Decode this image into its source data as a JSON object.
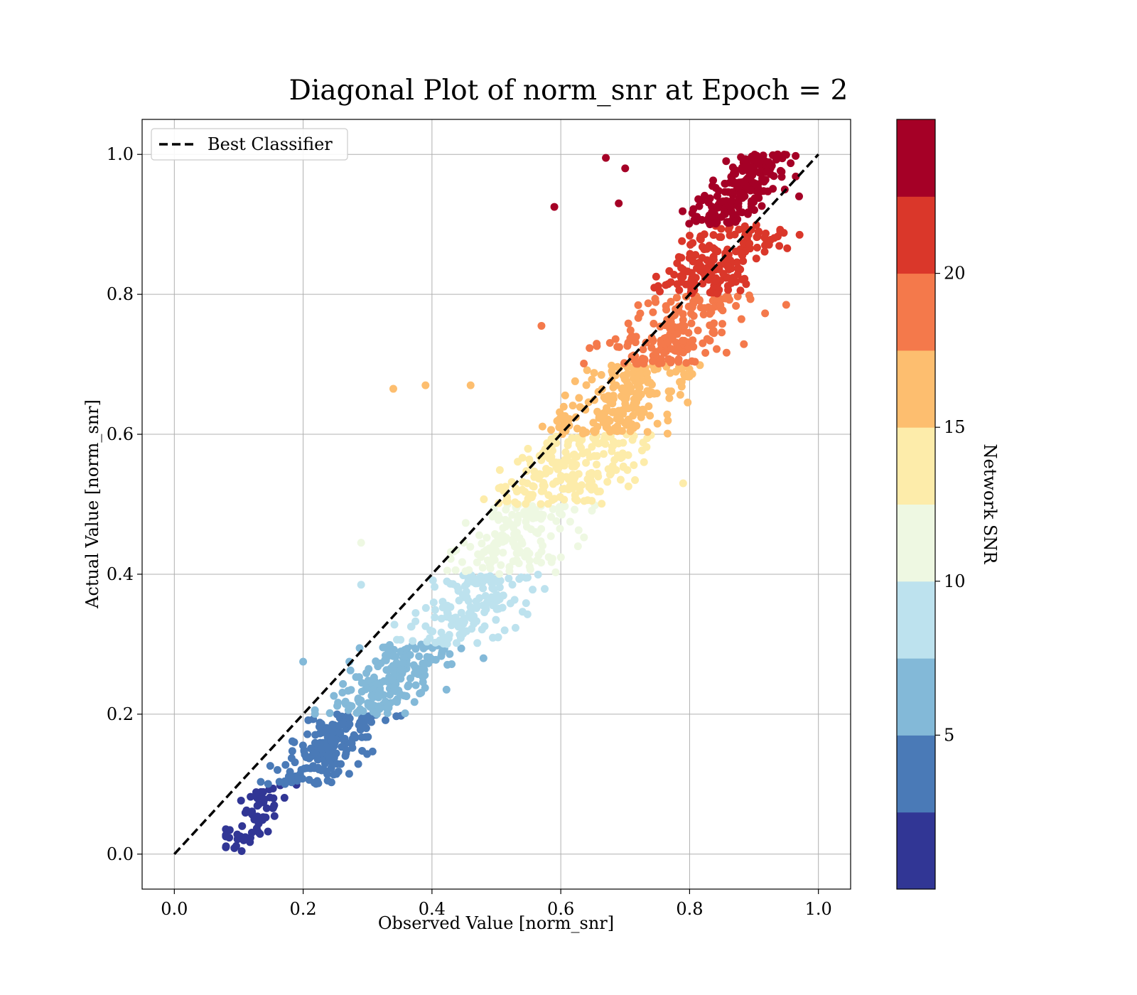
{
  "chart_data": {
    "type": "scatter",
    "title": "Diagonal Plot of norm_snr at Epoch = 2",
    "xlabel": "Observed Value [norm_snr]",
    "ylabel": "Actual Value [norm_snr]",
    "xlim": [
      -0.05,
      1.05
    ],
    "ylim": [
      -0.05,
      1.05
    ],
    "xticks": [
      0.0,
      0.2,
      0.4,
      0.6,
      0.8,
      1.0
    ],
    "yticks": [
      0.0,
      0.2,
      0.4,
      0.6,
      0.8,
      1.0
    ],
    "xtick_labels": [
      "0.0",
      "0.2",
      "0.4",
      "0.6",
      "0.8",
      "1.0"
    ],
    "ytick_labels": [
      "0.0",
      "0.2",
      "0.4",
      "0.6",
      "0.8",
      "1.0"
    ],
    "grid": true,
    "legend": {
      "placement": "upper-left",
      "entries": [
        "Best Classifier"
      ]
    },
    "reference_line": {
      "name": "Best Classifier",
      "x": [
        0.0,
        1.0
      ],
      "y": [
        0.0,
        1.0
      ],
      "style": "dashed",
      "color": "#000000"
    },
    "colorbar": {
      "label": "Network SNR",
      "range": [
        0.0,
        25.0
      ],
      "ticks": [
        5,
        10,
        15,
        20
      ],
      "tick_labels": [
        "5",
        "10",
        "15",
        "20"
      ],
      "colors": [
        "#313695",
        "#4a7ab7",
        "#83b9d8",
        "#bde2ee",
        "#eef8e2",
        "#fdecaa",
        "#fdbe6f",
        "#f4794b",
        "#da372a",
        "#a50026"
      ]
    },
    "bins": [
      {
        "y_range": [
          0.0,
          0.1
        ],
        "color": "#313695",
        "x_center": 0.12,
        "x_spread": 0.03,
        "count": 60
      },
      {
        "y_range": [
          0.1,
          0.2
        ],
        "color": "#4a7ab7",
        "x_center": 0.24,
        "x_spread": 0.05,
        "count": 170
      },
      {
        "y_range": [
          0.2,
          0.3
        ],
        "color": "#83b9d8",
        "x_center": 0.34,
        "x_spread": 0.06,
        "count": 190
      },
      {
        "y_range": [
          0.3,
          0.4
        ],
        "color": "#bde2ee",
        "x_center": 0.45,
        "x_spread": 0.07,
        "count": 150
      },
      {
        "y_range": [
          0.4,
          0.5
        ],
        "color": "#eef8e2",
        "x_center": 0.53,
        "x_spread": 0.07,
        "count": 150
      },
      {
        "y_range": [
          0.5,
          0.6
        ],
        "color": "#fdecaa",
        "x_center": 0.62,
        "x_spread": 0.08,
        "count": 200
      },
      {
        "y_range": [
          0.6,
          0.7
        ],
        "color": "#fdbe6f",
        "x_center": 0.7,
        "x_spread": 0.08,
        "count": 210
      },
      {
        "y_range": [
          0.7,
          0.8
        ],
        "color": "#f4794b",
        "x_center": 0.78,
        "x_spread": 0.07,
        "count": 180
      },
      {
        "y_range": [
          0.8,
          0.9
        ],
        "color": "#da372a",
        "x_center": 0.85,
        "x_spread": 0.06,
        "count": 190
      },
      {
        "y_range": [
          0.9,
          1.0
        ],
        "color": "#a50026",
        "x_center": 0.88,
        "x_spread": 0.04,
        "count": 210
      }
    ],
    "outliers": [
      {
        "x": 0.59,
        "y": 0.925,
        "color": "#a50026"
      },
      {
        "x": 0.67,
        "y": 0.995,
        "color": "#a50026"
      },
      {
        "x": 0.7,
        "y": 0.98,
        "color": "#a50026"
      },
      {
        "x": 0.69,
        "y": 0.93,
        "color": "#a50026"
      },
      {
        "x": 0.34,
        "y": 0.665,
        "color": "#fdbe6f"
      },
      {
        "x": 0.39,
        "y": 0.67,
        "color": "#fdbe6f"
      },
      {
        "x": 0.46,
        "y": 0.67,
        "color": "#fdbe6f"
      },
      {
        "x": 0.57,
        "y": 0.755,
        "color": "#f4794b"
      },
      {
        "x": 0.29,
        "y": 0.445,
        "color": "#eef8e2"
      },
      {
        "x": 0.29,
        "y": 0.385,
        "color": "#bde2ee"
      },
      {
        "x": 0.2,
        "y": 0.275,
        "color": "#83b9d8"
      },
      {
        "x": 0.48,
        "y": 0.28,
        "color": "#83b9d8"
      },
      {
        "x": 0.79,
        "y": 0.53,
        "color": "#fdecaa"
      },
      {
        "x": 0.95,
        "y": 0.785,
        "color": "#f4794b"
      },
      {
        "x": 0.97,
        "y": 0.94,
        "color": "#a50026"
      }
    ]
  }
}
